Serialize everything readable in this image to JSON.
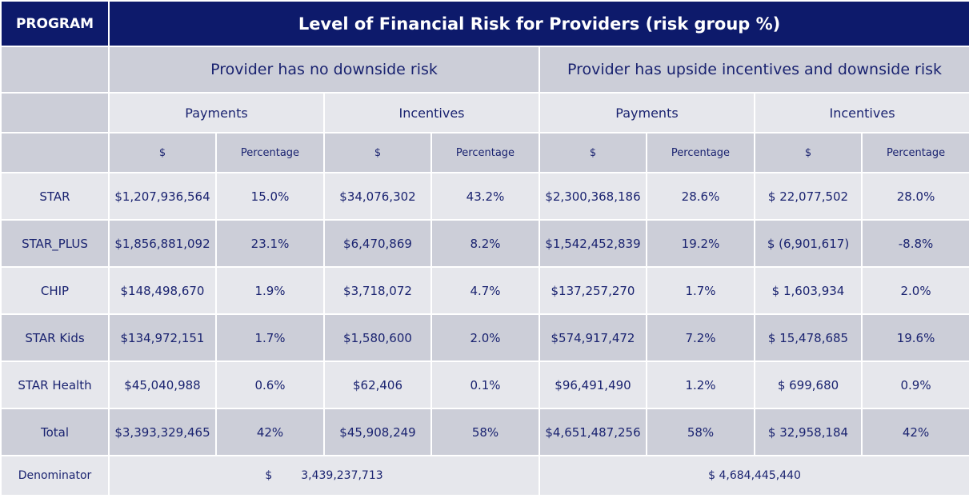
{
  "header": {
    "program_label": "PROGRAM",
    "title": "Level of Financial Risk for Providers (risk group %)"
  },
  "groups": [
    "Provider has no downside risk",
    "Provider has upside incentives and downside risk"
  ],
  "subgroups": [
    "Payments",
    "Incentives",
    "Payments",
    "Incentives"
  ],
  "columns": [
    "$",
    "Percentage",
    "$",
    "Percentage",
    "$",
    "Percentage",
    "$",
    "Percentage"
  ],
  "rows": [
    {
      "program": "STAR",
      "cells": [
        "$1,207,936,564",
        "15.0%",
        "$34,076,302",
        "43.2%",
        "$2,300,368,186",
        "28.6%",
        "$ 22,077,502",
        "28.0%"
      ]
    },
    {
      "program": "STAR_PLUS",
      "cells": [
        "$1,856,881,092",
        "23.1%",
        "$6,470,869",
        "8.2%",
        "$1,542,452,839",
        "19.2%",
        "$ (6,901,617)",
        "-8.8%"
      ]
    },
    {
      "program": "CHIP",
      "cells": [
        "$148,498,670",
        "1.9%",
        "$3,718,072",
        "4.7%",
        "$137,257,270",
        "1.7%",
        "$ 1,603,934",
        "2.0%"
      ]
    },
    {
      "program": "STAR Kids",
      "cells": [
        "$134,972,151",
        "1.7%",
        "$1,580,600",
        "2.0%",
        "$574,917,472",
        "7.2%",
        "$ 15,478,685",
        "19.6%"
      ]
    },
    {
      "program": "STAR Health",
      "cells": [
        "$45,040,988",
        "0.6%",
        "$62,406",
        "0.1%",
        "$96,491,490",
        "1.2%",
        "$ 699,680",
        "0.9%"
      ]
    },
    {
      "program": "Total",
      "cells": [
        "$3,393,329,465",
        "42%",
        "$45,908,249",
        "58%",
        "$4,651,487,256",
        "58%",
        "$ 32,958,184",
        "42%"
      ]
    }
  ],
  "denominator": {
    "label": "Denominator",
    "left_currency": "$",
    "left_value": "3,439,237,713",
    "right": "$ 4,684,445,440"
  }
}
